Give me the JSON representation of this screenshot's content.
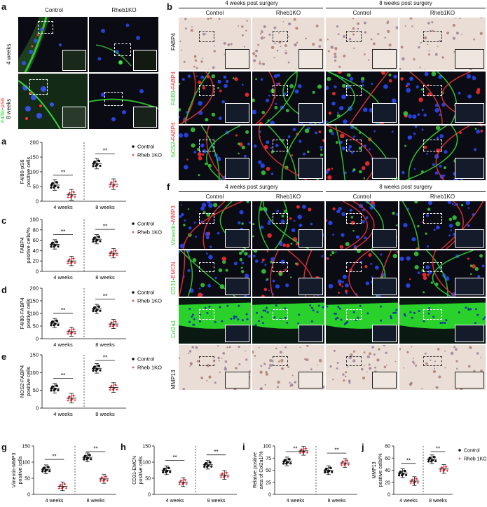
{
  "panels": {
    "a": {
      "letter": "a",
      "cols": [
        "Control",
        "Rheb1KO"
      ],
      "rows": [
        "4 weeks",
        "8 weeks"
      ],
      "stain_green": "F4/80",
      "stain_sep": "-",
      "stain_red": "pS6"
    },
    "b": {
      "letter": "b",
      "groups": [
        "4 weeks post surgery",
        "8 weeks post surgery"
      ],
      "cols": [
        "Control",
        "Rheb1KO",
        "Control",
        "Rheb1KO"
      ],
      "rows": [
        {
          "g": "",
          "r": "",
          "k": "FABP4"
        },
        {
          "g": "F4/80",
          "r": "FABP4",
          "k": ""
        },
        {
          "g": "NOS2",
          "r": "FABP4",
          "k": ""
        }
      ]
    },
    "c": {
      "letter": "c"
    },
    "d": {
      "letter": "d"
    },
    "e": {
      "letter": "e"
    },
    "f": {
      "letter": "f",
      "groups": [
        "4 weeks post surgery",
        "8 weeks post surgery"
      ],
      "cols": [
        "Control",
        "Rheb1KO",
        "Control",
        "Rheb1KO"
      ],
      "rows": [
        {
          "g": "Vimentin",
          "r": "MMP3",
          "k": ""
        },
        {
          "g": "CD31",
          "r": "EMCN",
          "k": ""
        },
        {
          "g": "Col2a1",
          "r": "",
          "k": ""
        },
        {
          "g": "",
          "r": "",
          "k": "MMP13"
        }
      ]
    },
    "g": {
      "letter": "g"
    },
    "h": {
      "letter": "h"
    },
    "i": {
      "letter": "i"
    },
    "j": {
      "letter": "j"
    }
  },
  "legend": {
    "control": "Control",
    "ko": "Rheb 1KO"
  },
  "colors": {
    "control": "#111111",
    "ko": "#e8212a",
    "green": "#2fd12f",
    "red": "#ff2a2a"
  },
  "chart_data": [
    {
      "id": "a",
      "type": "scatter",
      "ylabel": [
        "F4/80-pS6",
        "positive cells"
      ],
      "yticks": [
        0,
        50,
        100,
        150,
        200
      ],
      "ylim": [
        0,
        200
      ],
      "categories": [
        "4 weeks",
        "8 weeks"
      ],
      "series": [
        {
          "name": "Control",
          "mean": [
            55,
            128
          ]
        },
        {
          "name": "Rheb 1KO",
          "mean": [
            22,
            58
          ]
        }
      ],
      "sig": [
        "**",
        "**"
      ],
      "legend": true
    },
    {
      "id": "c",
      "type": "scatter",
      "ylabel": [
        "FABP4",
        "positive cells/%"
      ],
      "yticks": [
        0,
        20,
        40,
        60,
        80,
        100
      ],
      "ylim": [
        0,
        100
      ],
      "categories": [
        "4 weeks",
        "8 weeks"
      ],
      "series": [
        {
          "name": "Control",
          "mean": [
            52,
            62
          ]
        },
        {
          "name": "Rheb 1KO",
          "mean": [
            20,
            35
          ]
        }
      ],
      "sig": [
        "**",
        "**"
      ],
      "legend": true
    },
    {
      "id": "d",
      "type": "scatter",
      "ylabel": [
        "F4/80-FABP4",
        "positive cells"
      ],
      "yticks": [
        0,
        50,
        100,
        150,
        200
      ],
      "ylim": [
        0,
        200
      ],
      "categories": [
        "4 weeks",
        "8 weeks"
      ],
      "series": [
        {
          "name": "Control",
          "mean": [
            62,
            118
          ]
        },
        {
          "name": "Rheb 1KO",
          "mean": [
            28,
            58
          ]
        }
      ],
      "sig": [
        "**",
        "**"
      ],
      "legend": true
    },
    {
      "id": "e",
      "type": "scatter",
      "ylabel": [
        "NOS2-FABP4",
        "positive cells"
      ],
      "yticks": [
        0,
        50,
        100,
        150
      ],
      "ylim": [
        0,
        150
      ],
      "categories": [
        "4 weeks",
        "8 weeks"
      ],
      "series": [
        {
          "name": "Control",
          "mean": [
            56,
            112
          ]
        },
        {
          "name": "Rheb 1KO",
          "mean": [
            28,
            58
          ]
        }
      ],
      "sig": [
        "**",
        "**"
      ],
      "legend": true
    },
    {
      "id": "g",
      "type": "scatter",
      "ylabel": [
        "Vimentin-MMP3",
        "positive cells"
      ],
      "yticks": [
        0,
        50,
        100,
        150
      ],
      "ylim": [
        0,
        150
      ],
      "categories": [
        "4 weeks",
        "8 weeks"
      ],
      "series": [
        {
          "name": "Control",
          "mean": [
            78,
            115
          ]
        },
        {
          "name": "Rheb 1KO",
          "mean": [
            25,
            48
          ]
        }
      ],
      "sig": [
        "**",
        "**"
      ],
      "legend": false
    },
    {
      "id": "h",
      "type": "scatter",
      "ylabel": [
        "CD31-EMCN",
        "positive cells"
      ],
      "yticks": [
        0,
        50,
        100,
        150
      ],
      "ylim": [
        0,
        150
      ],
      "categories": [
        "4 weeks",
        "8 weeks"
      ],
      "series": [
        {
          "name": "Control",
          "mean": [
            75,
            92
          ]
        },
        {
          "name": "Rheb 1KO",
          "mean": [
            38,
            60
          ]
        }
      ],
      "sig": [
        "**",
        "**"
      ],
      "legend": false
    },
    {
      "id": "i",
      "type": "scatter",
      "ylabel": [
        "Relative positive",
        "area of Col2a1/%"
      ],
      "yticks": [
        0,
        25,
        50,
        75,
        100
      ],
      "ylim": [
        0,
        100
      ],
      "categories": [
        "4 weeks",
        "8 weeks"
      ],
      "series": [
        {
          "name": "Control",
          "mean": [
            68,
            50
          ]
        },
        {
          "name": "Rheb 1KO",
          "mean": [
            90,
            65
          ]
        }
      ],
      "sig": [
        "**",
        "**"
      ],
      "legend": false
    },
    {
      "id": "j",
      "type": "scatter",
      "ylabel": [
        "MMP13",
        "positive cells/%"
      ],
      "yticks": [
        0,
        20,
        40,
        60,
        80
      ],
      "ylim": [
        0,
        80
      ],
      "categories": [
        "4 weeks",
        "8 weeks"
      ],
      "series": [
        {
          "name": "Control",
          "mean": [
            35,
            58
          ]
        },
        {
          "name": "Rheb 1KO",
          "mean": [
            22,
            42
          ]
        }
      ],
      "sig": [
        "**",
        "**"
      ],
      "legend": true
    }
  ]
}
